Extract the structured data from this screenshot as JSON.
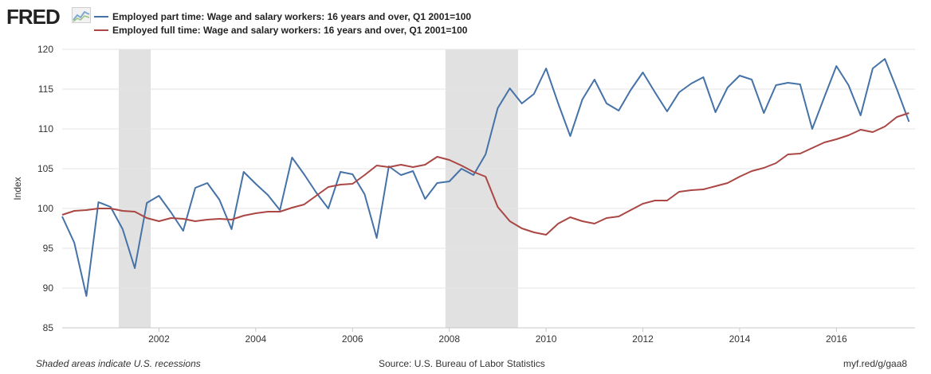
{
  "header": {
    "logo_text": "FRED",
    "logo_icon": "fred-sparkline-icon"
  },
  "footer": {
    "recession_note": "Shaded areas indicate U.S. recessions",
    "source": "Source: U.S. Bureau of Labor Statistics",
    "short_url": "myf.red/g/gaa8"
  },
  "colors": {
    "part_time": "#4572a7",
    "full_time": "#aa4643",
    "recession_shade": "#e1e1e1",
    "grid": "#e5e5e5"
  },
  "chart_data": {
    "type": "line",
    "title": "",
    "xlabel": "",
    "ylabel": "Index",
    "ylim": [
      85,
      120
    ],
    "xlim": [
      2000.0,
      2017.625
    ],
    "grid": "horizontal",
    "legend_position": "top-left",
    "yticks": [
      "85",
      "90",
      "95",
      "100",
      "105",
      "110",
      "115",
      "120"
    ],
    "xticks": [
      "2002",
      "2004",
      "2006",
      "2008",
      "2010",
      "2012",
      "2014",
      "2016"
    ],
    "recessions": [
      [
        2001.17,
        2001.83
      ],
      [
        2007.92,
        2009.42
      ]
    ],
    "series": [
      {
        "name": "Employed part time: Wage and salary workers: 16 years and over, Q1 2001=100",
        "color": "#4572a7",
        "start": 2000.0,
        "step": 0.25,
        "values": [
          99.0,
          95.7,
          89.0,
          100.8,
          100.2,
          97.4,
          92.5,
          100.7,
          101.6,
          99.5,
          97.2,
          102.6,
          103.2,
          101.1,
          97.4,
          104.6,
          103.1,
          101.7,
          99.8,
          106.4,
          104.3,
          102.0,
          100.0,
          104.6,
          104.3,
          101.8,
          96.3,
          105.3,
          104.2,
          104.7,
          101.2,
          103.2,
          103.4,
          105.0,
          104.2,
          106.8,
          112.6,
          115.1,
          113.2,
          114.4,
          117.6,
          113.2,
          109.1,
          113.7,
          116.2,
          113.2,
          112.3,
          114.9,
          117.1,
          114.6,
          112.2,
          114.6,
          115.7,
          116.5,
          112.1,
          115.2,
          116.7,
          116.2,
          112.0,
          115.5,
          115.8,
          115.6,
          110.0,
          114.0,
          117.9,
          115.5,
          111.7,
          117.6,
          118.8,
          115.0,
          110.9
        ]
      },
      {
        "name": "Employed full time: Wage and salary workers: 16 years and over, Q1 2001=100",
        "color": "#aa4643",
        "start": 2000.0,
        "step": 0.25,
        "values": [
          99.2,
          99.7,
          99.8,
          100.0,
          100.0,
          99.7,
          99.6,
          98.8,
          98.4,
          98.8,
          98.7,
          98.4,
          98.6,
          98.7,
          98.6,
          99.1,
          99.4,
          99.6,
          99.6,
          100.1,
          100.5,
          101.6,
          102.7,
          103.0,
          103.1,
          104.2,
          105.4,
          105.2,
          105.5,
          105.2,
          105.5,
          106.5,
          106.1,
          105.4,
          104.6,
          104.0,
          100.2,
          98.4,
          97.5,
          97.0,
          96.7,
          98.1,
          98.9,
          98.4,
          98.1,
          98.8,
          99.0,
          99.8,
          100.6,
          101.0,
          101.0,
          102.1,
          102.3,
          102.4,
          102.8,
          103.2,
          104.0,
          104.7,
          105.1,
          105.7,
          106.8,
          106.9,
          107.6,
          108.3,
          108.7,
          109.2,
          109.9,
          109.6,
          110.3,
          111.5,
          112.0
        ]
      }
    ]
  }
}
